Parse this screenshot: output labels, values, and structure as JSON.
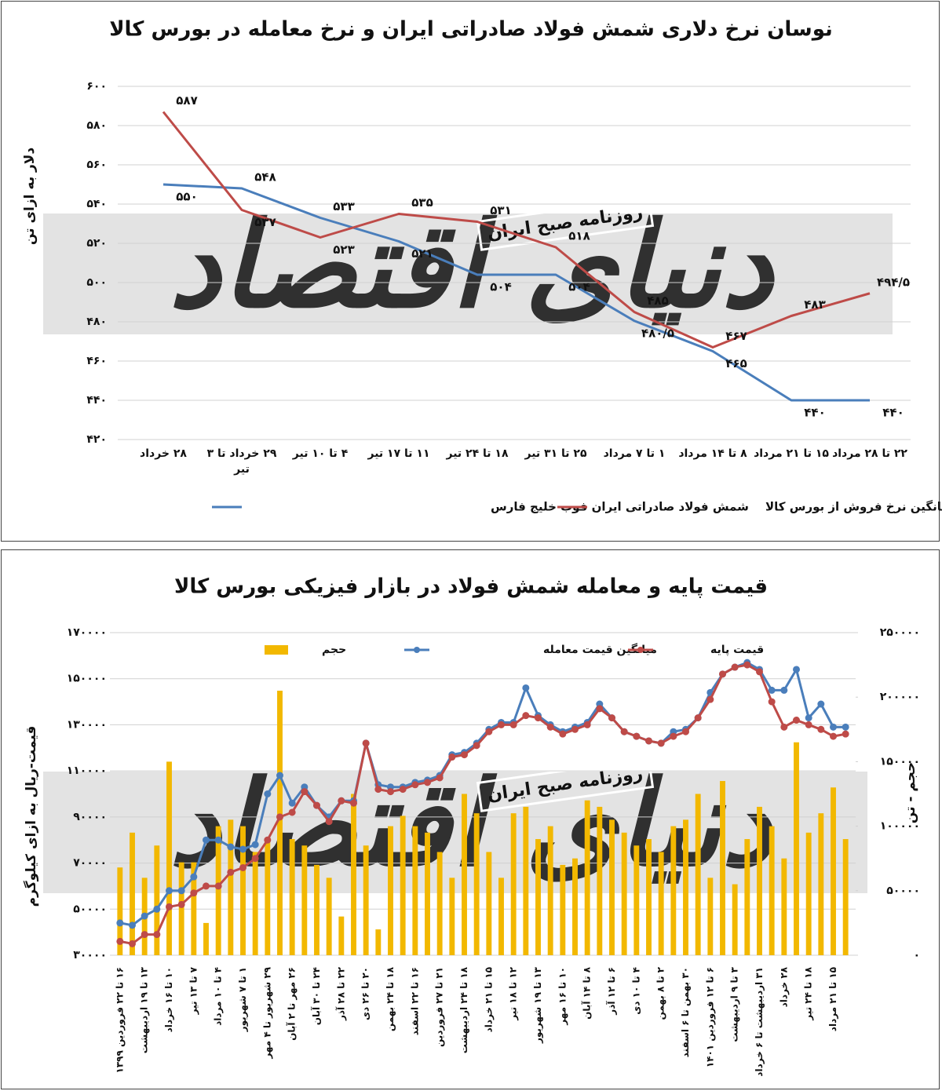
{
  "chart_data": [
    {
      "type": "line",
      "title": "نوسان نرخ دلاری شمش فولاد صادراتی ایران و نرخ معامله در بورس کالا",
      "ylabel": "دلار به ازای تن",
      "watermarks": [
        "دنیای اقتصاد",
        "روزنامه صبح ایران"
      ],
      "categories": [
        "۲۸ خرداد",
        "۲۹ خرداد تا ۳ تیر",
        "۴ تا ۱۰ تیر",
        "۱۱ تا ۱۷ تیر",
        "۱۸ تا ۲۴ تیر",
        "۲۵ تا ۳۱ تیر",
        "۱ تا ۷ مرداد",
        "۸ تا ۱۴ مرداد",
        "۱۵ تا ۲۱ مرداد",
        "۲۲ تا ۲۸ مرداد"
      ],
      "series": [
        {
          "name": "شمش فولاد صادراتی ایران فوب خلیج فارس",
          "color": "#4a7ebb",
          "values": [
            550,
            548,
            533,
            521,
            504,
            504,
            480.5,
            465,
            440,
            440
          ],
          "value_labels": [
            "۵۵۰",
            "۵۴۸",
            "۵۳۳",
            "۵۲۱",
            "۵۰۴",
            "۵۰۴",
            "۴۸۰/۵",
            "۴۶۵",
            "۴۴۰",
            "۴۴۰"
          ]
        },
        {
          "name": "میانگین نرخ فروش از بورس کالا",
          "color": "#be4b48",
          "values": [
            587,
            537,
            523,
            535,
            531,
            518,
            485,
            467,
            483,
            494.5
          ],
          "value_labels": [
            "۵۸۷",
            "۵۳۷",
            "۵۲۳",
            "۵۳۵",
            "۵۳۱",
            "۵۱۸",
            "۴۸۵",
            "۴۶۷",
            "۴۸۳",
            "۴۹۴/۵"
          ]
        }
      ],
      "ylim": [
        420,
        600
      ],
      "yticks": [
        {
          "value": 420,
          "label": "۴۲۰"
        },
        {
          "value": 440,
          "label": "۴۴۰"
        },
        {
          "value": 460,
          "label": "۴۶۰"
        },
        {
          "value": 480,
          "label": "۴۸۰"
        },
        {
          "value": 500,
          "label": "۵۰۰"
        },
        {
          "value": 520,
          "label": "۵۲۰"
        },
        {
          "value": 540,
          "label": "۵۴۰"
        },
        {
          "value": 560,
          "label": "۵۶۰"
        },
        {
          "value": 580,
          "label": "۵۸۰"
        },
        {
          "value": 600,
          "label": "۶۰۰"
        }
      ],
      "grid": true,
      "legend": "bottom"
    },
    {
      "type": "bar-line",
      "title": "قیمت پایه و معامله شمش فولاد در بازار فیزیکی بورس کالا",
      "ylabel": "قیمت-ریال به ازای کیلوگرم",
      "y2label": "حجم - تن",
      "watermarks": [
        "دنیای اقتصاد",
        "روزنامه صبح ایران"
      ],
      "categories": [
        "۱۶ تا ۲۲ فروردین ۱۳۹۹",
        null,
        "۱۳ تا ۱۹ اردیبهشت",
        null,
        "۱۰ تا ۱۶ خرداد",
        null,
        "۷ تا ۱۳ تیر",
        null,
        "۴ تا ۱۰ مرداد",
        null,
        "۱ تا ۷ شهریور",
        null,
        "۲۹ شهریور تا ۴ مهر",
        null,
        "۲۶ مهر تا ۲ آبان",
        null,
        "۲۴ تا ۳۰ آبان",
        null,
        "۲۲ تا ۲۸ آذر",
        null,
        "۲۰ تا ۲۶ دی",
        null,
        "۱۸ تا ۲۴ بهمن",
        null,
        "۱۶ تا ۲۲ اسفند",
        null,
        "۲۱ تا ۲۷ فروردین",
        null,
        "۱۸ تا ۲۴ اردیبهشت",
        null,
        "۱۵ تا ۲۱ خرداد",
        null,
        "۱۲ تا ۱۸ تیر",
        null,
        "۱۳ تا ۱۹ شهریور",
        null,
        "۱۰ تا ۱۶ مهر",
        null,
        "۸ تا ۱۴ آبان",
        null,
        "۶ تا ۱۲ آذر",
        null,
        "۴ تا ۱۰ دی",
        null,
        "۲ تا ۸ بهمن",
        null,
        "۳۰ بهمن تا ۶ اسفند",
        null,
        "۶ تا ۱۲ فروردین ۱۴۰۱",
        null,
        "۳ تا ۹ اردیبهشت",
        null,
        "۳۱ اردیبهشت تا ۶ خرداد",
        null,
        "۲۸ خرداد",
        null,
        "۱۸ تا ۲۴ تیر",
        null,
        "۱۵ تا ۲۱ مرداد",
        null
      ],
      "series": [
        {
          "name": "حجم",
          "type": "bar",
          "axis": "y2",
          "color": "#f2b800",
          "values": [
            68000,
            95000,
            60000,
            85000,
            150000,
            72000,
            72000,
            25000,
            100000,
            105000,
            100000,
            80000,
            90000,
            205000,
            90000,
            85000,
            70000,
            60000,
            30000,
            125000,
            85000,
            20000,
            100000,
            108000,
            100000,
            95000,
            80000,
            60000,
            125000,
            110000,
            80000,
            60000,
            110000,
            115000,
            90000,
            100000,
            70000,
            75000,
            120000,
            115000,
            105000,
            95000,
            85000,
            90000,
            80000,
            100000,
            105000,
            125000,
            60000,
            135000,
            55000,
            90000,
            115000,
            100000,
            75000,
            165000,
            95000,
            110000,
            130000,
            90000
          ]
        },
        {
          "name": "میانگین قیمت معامله",
          "type": "line",
          "color": "#4a7ebb",
          "values": [
            44000,
            43000,
            47000,
            50000,
            58000,
            58000,
            64000,
            80000,
            80000,
            77000,
            76000,
            78000,
            100000,
            108000,
            96000,
            103000,
            95000,
            90000,
            97000,
            97000,
            122000,
            104000,
            103000,
            103000,
            105000,
            106000,
            108000,
            117000,
            118000,
            122000,
            128000,
            131000,
            131000,
            146000,
            134000,
            130000,
            127000,
            129000,
            131000,
            139000,
            133000,
            127000,
            125000,
            123000,
            122000,
            127000,
            128000,
            133000,
            144000,
            152000,
            155000,
            157000,
            154000,
            145000,
            145000,
            154000,
            133000,
            139000,
            129000,
            129000
          ]
        },
        {
          "name": "قیمت پایه",
          "type": "line",
          "color": "#be4b48",
          "values": [
            36000,
            35000,
            39000,
            39000,
            51000,
            52000,
            57000,
            60000,
            60000,
            66000,
            68000,
            72000,
            80000,
            90000,
            92000,
            101000,
            95000,
            88000,
            97000,
            96000,
            122000,
            102000,
            101000,
            102000,
            104000,
            105000,
            107000,
            116000,
            117000,
            121000,
            127000,
            130000,
            130000,
            134000,
            133000,
            129000,
            126000,
            128000,
            130000,
            137000,
            133000,
            127000,
            125000,
            123000,
            122000,
            125000,
            127000,
            133000,
            141000,
            152000,
            155000,
            156000,
            153000,
            140000,
            129000,
            132000,
            130000,
            128000,
            125000,
            126000
          ]
        }
      ],
      "ylim": [
        30000,
        170000
      ],
      "yticks": [
        {
          "value": 30000,
          "label": "۳۰۰۰۰"
        },
        {
          "value": 50000,
          "label": "۵۰۰۰۰"
        },
        {
          "value": 70000,
          "label": "۷۰۰۰۰"
        },
        {
          "value": 90000,
          "label": "۹۰۰۰۰"
        },
        {
          "value": 110000,
          "label": "۱۱۰۰۰۰"
        },
        {
          "value": 130000,
          "label": "۱۳۰۰۰۰"
        },
        {
          "value": 150000,
          "label": "۱۵۰۰۰۰"
        },
        {
          "value": 170000,
          "label": "۱۷۰۰۰۰"
        }
      ],
      "y2lim": [
        0,
        250000
      ],
      "y2ticks": [
        {
          "value": 0,
          "label": "۰"
        },
        {
          "value": 50000,
          "label": "۵۰۰۰۰"
        },
        {
          "value": 100000,
          "label": "۱۰۰۰۰۰"
        },
        {
          "value": 150000,
          "label": "۱۵۰۰۰۰"
        },
        {
          "value": 200000,
          "label": "۲۰۰۰۰۰"
        },
        {
          "value": 250000,
          "label": "۲۵۰۰۰۰"
        }
      ],
      "grid": true,
      "legend": "top"
    }
  ]
}
